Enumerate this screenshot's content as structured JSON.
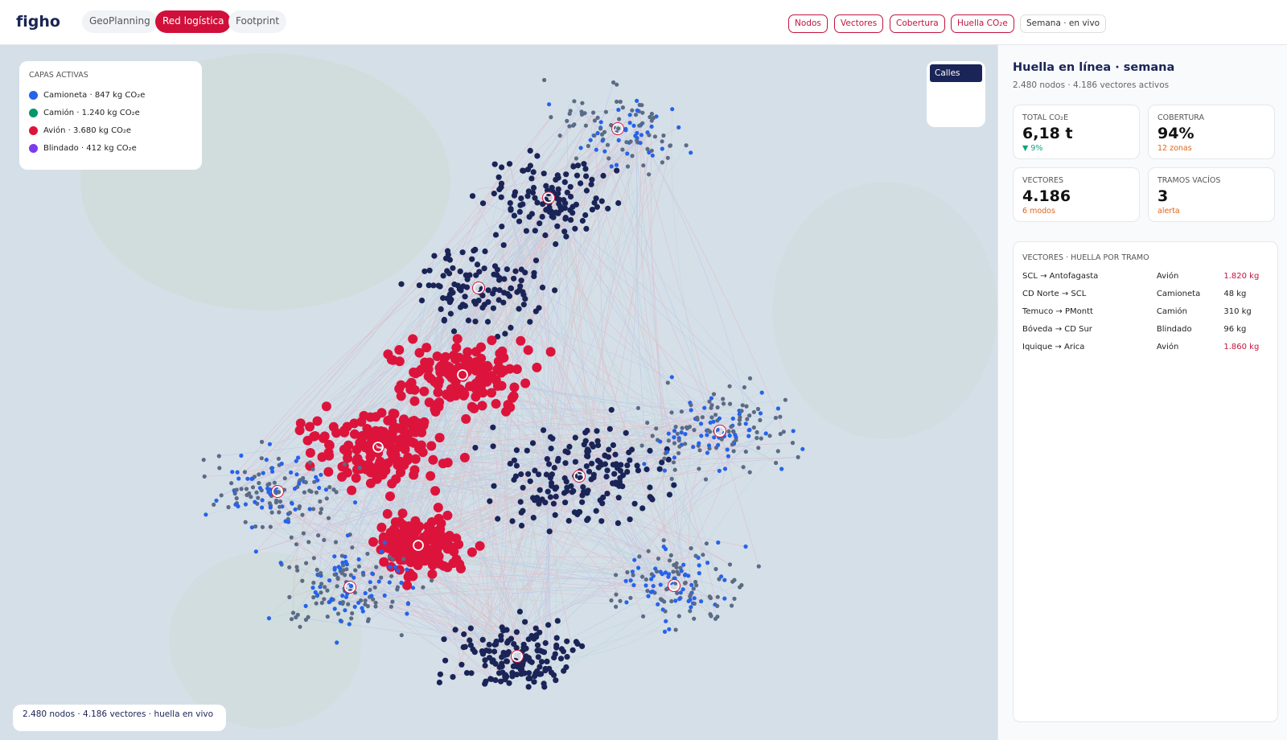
{
  "header": {
    "brand": "figho",
    "tabs": [
      {
        "label": "GeoPlanning",
        "active": false
      },
      {
        "label": "Red logística",
        "active": true
      },
      {
        "label": "Footprint",
        "active": false
      }
    ],
    "filters": [
      "Nodos",
      "Vectores",
      "Cobertura",
      "Huella CO₂e"
    ],
    "status": "Semana · en vivo"
  },
  "map": {
    "layers_title": "CAPAS ACTIVAS",
    "layers": [
      {
        "label": "Camioneta · 847 kg CO₂e",
        "color": "#2563eb"
      },
      {
        "label": "Camión · 1.240 kg CO₂e",
        "color": "#059669"
      },
      {
        "label": "Avión · 3.680 kg CO₂e",
        "color": "#dc143c"
      },
      {
        "label": "Blindado · 412 kg CO₂e",
        "color": "#7c3aed"
      }
    ],
    "base_button": "Calles",
    "footer": "2.480 nodos · 4.186 vectores · huella en vivo"
  },
  "panel": {
    "title": "Huella en línea · semana",
    "subtitle": "2.480 nodos · 4.186 vectores activos",
    "kpis": [
      {
        "label": "TOTAL CO₂E",
        "value": "6,18 t",
        "note": "▼ 9%",
        "tone": "good"
      },
      {
        "label": "COBERTURA",
        "value": "94%",
        "note": "12 zonas",
        "tone": "warn"
      },
      {
        "label": "VECTORES",
        "value": "4.186",
        "note": "6 modos",
        "tone": "warn"
      },
      {
        "label": "TRAMOS VACÍOS",
        "value": "3",
        "note": "alerta",
        "tone": "warn"
      }
    ],
    "table_title": "VECTORES · HUELLA POR TRAMO",
    "rows": [
      {
        "route": "SCL → Antofagasta",
        "mode": "Avión",
        "amount": "1.820 kg",
        "alert": true
      },
      {
        "route": "CD Norte → SCL",
        "mode": "Camioneta",
        "amount": "48 kg",
        "alert": false
      },
      {
        "route": "Temuco → PMontt",
        "mode": "Camión",
        "amount": "310 kg",
        "alert": false
      },
      {
        "route": "Bóveda → CD Sur",
        "mode": "Blindado",
        "amount": "96 kg",
        "alert": false
      },
      {
        "route": "Iquique → Arica",
        "mode": "Avión",
        "amount": "1.860 kg",
        "alert": true
      }
    ]
  }
}
